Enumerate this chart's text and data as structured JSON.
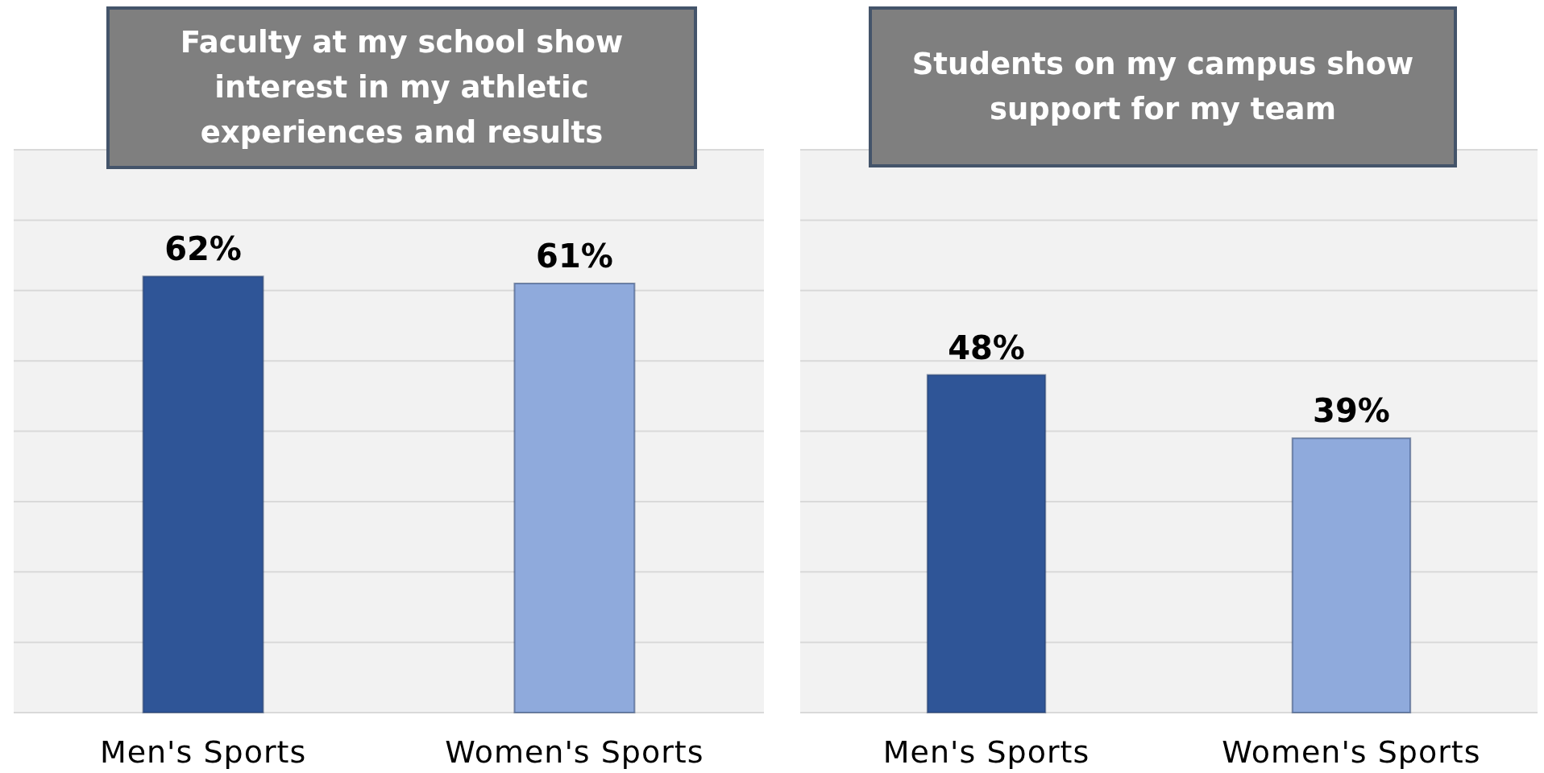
{
  "chart_data": [
    {
      "type": "bar",
      "title": "Faculty at my school show interest in my athletic experiences and results",
      "categories": [
        "Men's Sports",
        "Women's Sports"
      ],
      "values": [
        62,
        61
      ],
      "colors": [
        "#2f5597",
        "#8faadc"
      ],
      "ylim": [
        0,
        80
      ],
      "yticks": [
        {
          "value": 0,
          "label": null
        },
        {
          "value": 10,
          "label": null
        },
        {
          "value": 20,
          "label": null
        },
        {
          "value": 30,
          "label": null
        },
        {
          "value": 40,
          "label": null
        },
        {
          "value": 50,
          "label": null
        },
        {
          "value": 60,
          "label": null
        },
        {
          "value": 70,
          "label": null
        },
        {
          "value": 80,
          "label": null
        }
      ],
      "value_labels": [
        "62%",
        "61%"
      ],
      "grid": "y",
      "tick_labels": "x"
    },
    {
      "type": "bar",
      "title": "Students on my campus show support for my team",
      "categories": [
        "Men's Sports",
        "Women's Sports"
      ],
      "values": [
        48,
        39
      ],
      "colors": [
        "#2f5597",
        "#8faadc"
      ],
      "ylim": [
        0,
        80
      ],
      "yticks": [
        {
          "value": 0,
          "label": null
        },
        {
          "value": 10,
          "label": null
        },
        {
          "value": 20,
          "label": null
        },
        {
          "value": 30,
          "label": null
        },
        {
          "value": 40,
          "label": null
        },
        {
          "value": 50,
          "label": null
        },
        {
          "value": 60,
          "label": null
        },
        {
          "value": 70,
          "label": null
        },
        {
          "value": 80,
          "label": null
        }
      ],
      "value_labels": [
        "48%",
        "39%"
      ],
      "grid": "y",
      "tick_labels": "x"
    }
  ]
}
